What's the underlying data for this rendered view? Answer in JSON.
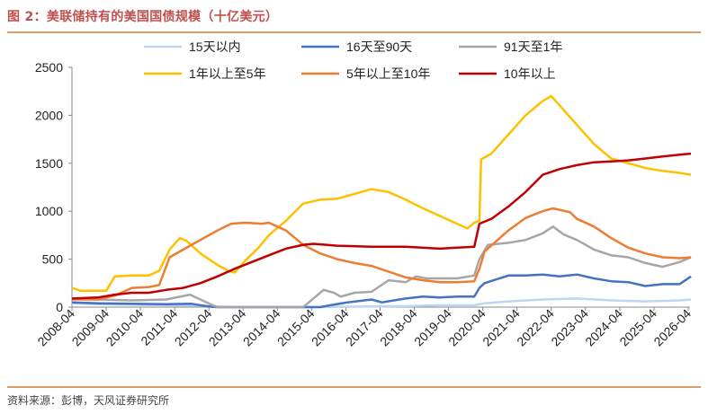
{
  "title": "图 2：美联储持有的美国国债规模（十亿美元）",
  "source": "资料来源：彭博，天风证券研究所",
  "chart_data": {
    "type": "line",
    "title": "美联储持有的美国国债规模（十亿美元）",
    "xlabel": "",
    "ylabel": "",
    "ylim": [
      0,
      2500
    ],
    "yticks": [
      0,
      500,
      1000,
      1500,
      2000,
      2500
    ],
    "xticks": [
      "2008-04",
      "2009-04",
      "2010-04",
      "2011-04",
      "2012-04",
      "2013-04",
      "2014-04",
      "2015-04",
      "2016-04",
      "2017-04",
      "2018-04",
      "2019-04",
      "2020-04",
      "2021-04",
      "2022-04",
      "2023-04",
      "2024-04",
      "2025-04",
      "2026-04"
    ],
    "legend_position": "top",
    "grid": false,
    "series": [
      {
        "name": "15天以内",
        "color": "#bdd7ee",
        "points": [
          [
            2008.25,
            40
          ],
          [
            2009.0,
            30
          ],
          [
            2010.0,
            25
          ],
          [
            2011.0,
            20
          ],
          [
            2012.0,
            15
          ],
          [
            2012.5,
            5
          ],
          [
            2013.0,
            0
          ],
          [
            2015.0,
            0
          ],
          [
            2016.5,
            5
          ],
          [
            2018.0,
            10
          ],
          [
            2019.0,
            20
          ],
          [
            2020.0,
            20
          ],
          [
            2020.3,
            40
          ],
          [
            2021.0,
            60
          ],
          [
            2022.0,
            80
          ],
          [
            2023.0,
            90
          ],
          [
            2024.0,
            70
          ],
          [
            2025.0,
            60
          ],
          [
            2026.0,
            70
          ],
          [
            2026.33,
            80
          ]
        ]
      },
      {
        "name": "16天至90天",
        "color": "#4472c4",
        "points": [
          [
            2008.25,
            50
          ],
          [
            2009.0,
            40
          ],
          [
            2010.0,
            35
          ],
          [
            2011.0,
            30
          ],
          [
            2011.75,
            35
          ],
          [
            2012.0,
            20
          ],
          [
            2012.3,
            5
          ],
          [
            2012.5,
            0
          ],
          [
            2015.5,
            0
          ],
          [
            2015.8,
            20
          ],
          [
            2016.3,
            50
          ],
          [
            2017.0,
            80
          ],
          [
            2017.3,
            50
          ],
          [
            2018.0,
            90
          ],
          [
            2018.5,
            110
          ],
          [
            2019.0,
            100
          ],
          [
            2019.5,
            110
          ],
          [
            2020.0,
            110
          ],
          [
            2020.15,
            200
          ],
          [
            2020.3,
            250
          ],
          [
            2021.0,
            330
          ],
          [
            2021.5,
            330
          ],
          [
            2022.0,
            340
          ],
          [
            2022.5,
            320
          ],
          [
            2023.0,
            340
          ],
          [
            2023.5,
            300
          ],
          [
            2024.0,
            270
          ],
          [
            2024.5,
            260
          ],
          [
            2025.0,
            220
          ],
          [
            2025.5,
            240
          ],
          [
            2026.0,
            240
          ],
          [
            2026.33,
            320
          ]
        ]
      },
      {
        "name": "91天至1年",
        "color": "#a6a6a6",
        "points": [
          [
            2008.25,
            90
          ],
          [
            2009.0,
            80
          ],
          [
            2010.0,
            70
          ],
          [
            2011.0,
            80
          ],
          [
            2011.7,
            130
          ],
          [
            2012.0,
            80
          ],
          [
            2012.3,
            30
          ],
          [
            2012.5,
            0
          ],
          [
            2015.0,
            0
          ],
          [
            2015.3,
            90
          ],
          [
            2015.6,
            180
          ],
          [
            2015.9,
            150
          ],
          [
            2016.1,
            110
          ],
          [
            2016.5,
            150
          ],
          [
            2017.0,
            160
          ],
          [
            2017.5,
            280
          ],
          [
            2018.0,
            260
          ],
          [
            2018.3,
            320
          ],
          [
            2018.6,
            300
          ],
          [
            2019.0,
            300
          ],
          [
            2019.5,
            300
          ],
          [
            2020.0,
            330
          ],
          [
            2020.15,
            500
          ],
          [
            2020.4,
            650
          ],
          [
            2021.0,
            670
          ],
          [
            2021.5,
            700
          ],
          [
            2022.0,
            770
          ],
          [
            2022.3,
            840
          ],
          [
            2022.6,
            760
          ],
          [
            2023.0,
            700
          ],
          [
            2023.5,
            600
          ],
          [
            2024.0,
            540
          ],
          [
            2024.5,
            520
          ],
          [
            2025.0,
            460
          ],
          [
            2025.5,
            420
          ],
          [
            2026.0,
            470
          ],
          [
            2026.33,
            520
          ]
        ]
      },
      {
        "name": "1年以上至5年",
        "color": "#ffc000",
        "points": [
          [
            2008.25,
            200
          ],
          [
            2008.5,
            170
          ],
          [
            2009.0,
            170
          ],
          [
            2009.25,
            170
          ],
          [
            2009.5,
            320
          ],
          [
            2010.0,
            330
          ],
          [
            2010.5,
            330
          ],
          [
            2010.8,
            380
          ],
          [
            2011.1,
            600
          ],
          [
            2011.4,
            720
          ],
          [
            2011.6,
            690
          ],
          [
            2012.0,
            560
          ],
          [
            2012.5,
            440
          ],
          [
            2012.8,
            380
          ],
          [
            2013.0,
            360
          ],
          [
            2013.3,
            480
          ],
          [
            2013.7,
            620
          ],
          [
            2014.0,
            750
          ],
          [
            2014.5,
            900
          ],
          [
            2015.0,
            1080
          ],
          [
            2015.5,
            1120
          ],
          [
            2016.0,
            1130
          ],
          [
            2016.5,
            1180
          ],
          [
            2017.0,
            1230
          ],
          [
            2017.5,
            1200
          ],
          [
            2018.0,
            1120
          ],
          [
            2018.5,
            1030
          ],
          [
            2019.0,
            950
          ],
          [
            2019.5,
            870
          ],
          [
            2019.8,
            820
          ],
          [
            2020.0,
            880
          ],
          [
            2020.15,
            900
          ],
          [
            2020.2,
            1540
          ],
          [
            2020.5,
            1600
          ],
          [
            2021.0,
            1800
          ],
          [
            2021.5,
            2000
          ],
          [
            2022.0,
            2150
          ],
          [
            2022.25,
            2200
          ],
          [
            2022.5,
            2100
          ],
          [
            2023.0,
            1900
          ],
          [
            2023.5,
            1700
          ],
          [
            2024.0,
            1550
          ],
          [
            2024.5,
            1500
          ],
          [
            2025.0,
            1450
          ],
          [
            2025.5,
            1420
          ],
          [
            2026.0,
            1400
          ],
          [
            2026.33,
            1380
          ]
        ]
      },
      {
        "name": "5年以上至10年",
        "color": "#ed7d31",
        "points": [
          [
            2008.25,
            80
          ],
          [
            2009.0,
            80
          ],
          [
            2009.5,
            120
          ],
          [
            2010.0,
            200
          ],
          [
            2010.5,
            210
          ],
          [
            2010.8,
            230
          ],
          [
            2011.1,
            520
          ],
          [
            2011.5,
            600
          ],
          [
            2012.0,
            700
          ],
          [
            2012.5,
            800
          ],
          [
            2012.9,
            870
          ],
          [
            2013.3,
            880
          ],
          [
            2013.8,
            870
          ],
          [
            2014.0,
            880
          ],
          [
            2014.5,
            800
          ],
          [
            2015.0,
            650
          ],
          [
            2015.5,
            560
          ],
          [
            2016.0,
            500
          ],
          [
            2016.5,
            460
          ],
          [
            2017.0,
            430
          ],
          [
            2017.5,
            370
          ],
          [
            2018.0,
            310
          ],
          [
            2018.5,
            280
          ],
          [
            2019.0,
            260
          ],
          [
            2019.5,
            260
          ],
          [
            2020.0,
            270
          ],
          [
            2020.15,
            400
          ],
          [
            2020.3,
            580
          ],
          [
            2021.0,
            800
          ],
          [
            2021.5,
            930
          ],
          [
            2022.0,
            1000
          ],
          [
            2022.3,
            1030
          ],
          [
            2022.8,
            990
          ],
          [
            2023.0,
            920
          ],
          [
            2023.5,
            840
          ],
          [
            2024.0,
            720
          ],
          [
            2024.5,
            620
          ],
          [
            2025.0,
            560
          ],
          [
            2025.5,
            520
          ],
          [
            2026.0,
            510
          ],
          [
            2026.33,
            520
          ]
        ]
      },
      {
        "name": "10年以上",
        "color": "#c00000",
        "points": [
          [
            2008.25,
            90
          ],
          [
            2009.0,
            100
          ],
          [
            2009.5,
            130
          ],
          [
            2010.0,
            150
          ],
          [
            2010.5,
            150
          ],
          [
            2011.0,
            180
          ],
          [
            2011.5,
            200
          ],
          [
            2012.0,
            250
          ],
          [
            2012.5,
            320
          ],
          [
            2013.0,
            400
          ],
          [
            2013.5,
            470
          ],
          [
            2014.0,
            540
          ],
          [
            2014.5,
            610
          ],
          [
            2015.0,
            650
          ],
          [
            2015.3,
            660
          ],
          [
            2016.0,
            640
          ],
          [
            2017.0,
            630
          ],
          [
            2018.0,
            630
          ],
          [
            2019.0,
            610
          ],
          [
            2019.5,
            620
          ],
          [
            2020.0,
            630
          ],
          [
            2020.15,
            870
          ],
          [
            2020.5,
            920
          ],
          [
            2021.0,
            1050
          ],
          [
            2021.5,
            1200
          ],
          [
            2022.0,
            1380
          ],
          [
            2022.5,
            1440
          ],
          [
            2023.0,
            1480
          ],
          [
            2023.5,
            1510
          ],
          [
            2024.0,
            1520
          ],
          [
            2024.5,
            1530
          ],
          [
            2025.0,
            1550
          ],
          [
            2025.5,
            1570
          ],
          [
            2026.0,
            1590
          ],
          [
            2026.33,
            1600
          ]
        ]
      }
    ]
  }
}
